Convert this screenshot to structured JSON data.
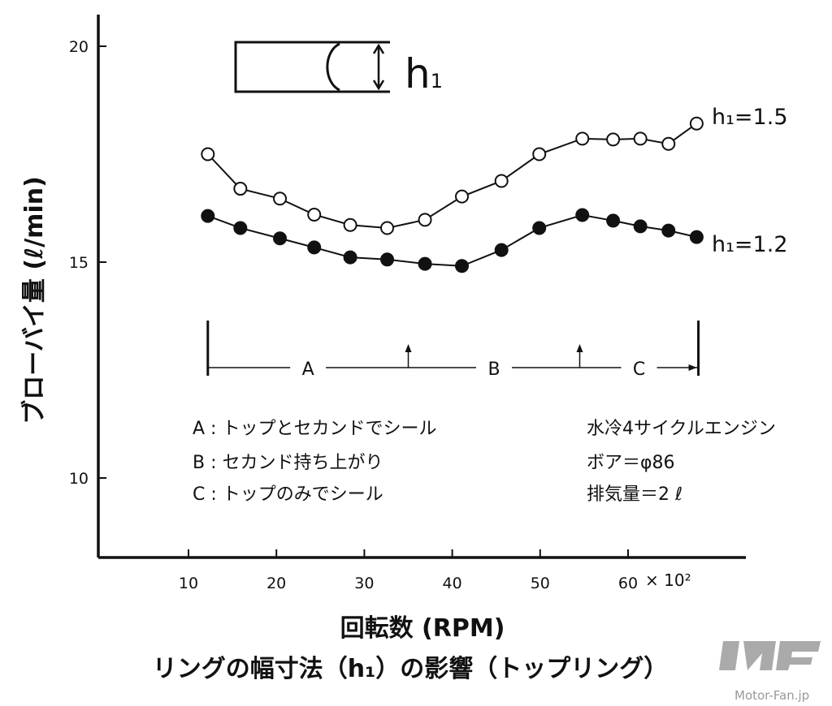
{
  "chart_data": {
    "type": "line",
    "title": "リングの幅寸法（h₁）の影響（トップリング）",
    "xlabel": "回転数 (RPM)",
    "ylabel": "ブローバイ量 (ℓ/min)",
    "x_unit_label": "× 10²",
    "xlim": [
      0,
      72
    ],
    "ylim": [
      8,
      20.6
    ],
    "xticks": [
      10,
      20,
      30,
      40,
      50,
      60
    ],
    "yticks": [
      10,
      15,
      20
    ],
    "grid": false,
    "series": [
      {
        "name": "h₁=1.5",
        "marker": "open-circle",
        "x": [
          12.2,
          15.9,
          20.4,
          24.3,
          28.4,
          32.6,
          36.9,
          41.1,
          45.6,
          49.9,
          54.8,
          58.3,
          61.4,
          64.6,
          67.8
        ],
        "y": [
          17.5,
          16.7,
          16.47,
          16.1,
          15.86,
          15.79,
          15.98,
          16.52,
          16.88,
          17.5,
          17.86,
          17.84,
          17.86,
          17.74,
          18.21
        ]
      },
      {
        "name": "h₁=1.2",
        "marker": "filled-circle",
        "x": [
          12.2,
          15.9,
          20.4,
          24.3,
          28.4,
          32.6,
          36.9,
          41.1,
          45.6,
          49.9,
          54.8,
          58.3,
          61.4,
          64.6,
          67.8
        ],
        "y": [
          16.07,
          15.79,
          15.55,
          15.34,
          15.11,
          15.06,
          14.96,
          14.91,
          15.28,
          15.79,
          16.09,
          15.96,
          15.83,
          15.73,
          15.58
        ]
      }
    ],
    "regions": {
      "start": 12.2,
      "boundaries": [
        35,
        54.5
      ],
      "end": 68.0,
      "labels": [
        "A",
        "B",
        "C"
      ]
    },
    "inset_label": "h1",
    "notes_left": [
      "A : トップとセカンドでシール",
      "B : セカンド持ち上がり",
      "C : トップのみでシール"
    ],
    "notes_right": [
      "水冷4サイクルエンジン",
      "ボア＝φ86",
      "排気量＝2 ℓ"
    ]
  },
  "watermark": "Motor-Fan.jp"
}
